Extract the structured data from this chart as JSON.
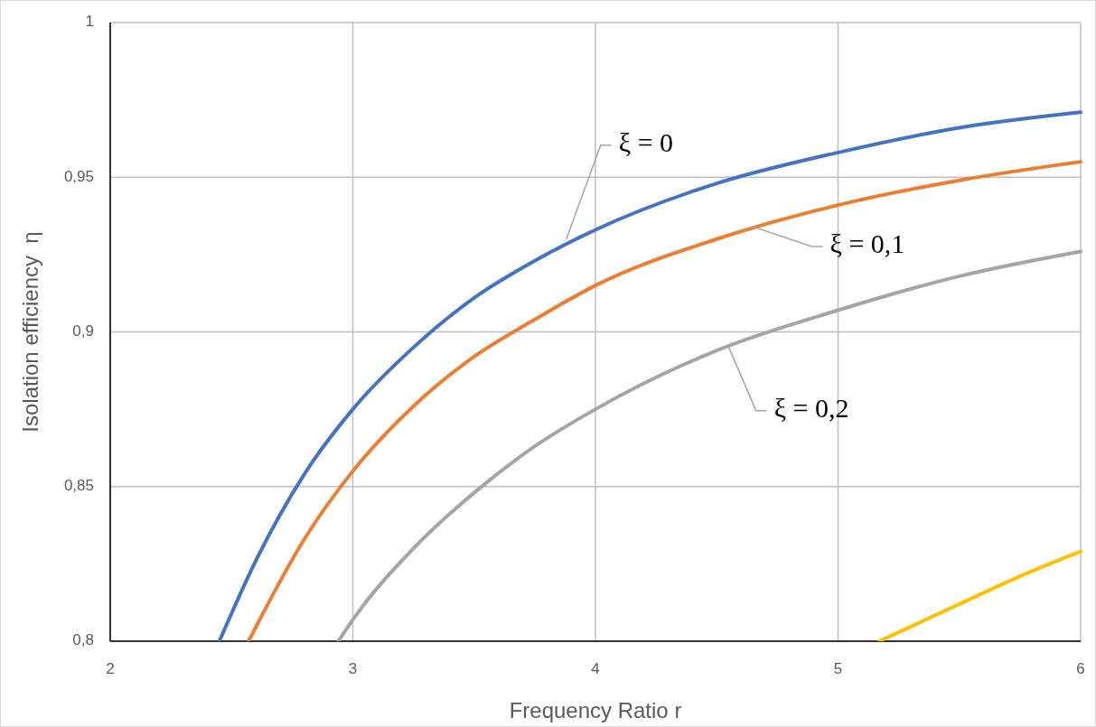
{
  "chart_data": {
    "type": "line",
    "xlabel": "Frequency Ratio r",
    "ylabel": "Isolation efficiency  η",
    "xlim": [
      2,
      6
    ],
    "ylim": [
      0.8,
      1
    ],
    "xticks": [
      2,
      3,
      4,
      5,
      6
    ],
    "yticks": [
      {
        "value": 0.8,
        "label": "0,8"
      },
      {
        "value": 0.85,
        "label": "0,85"
      },
      {
        "value": 0.9,
        "label": "0,9"
      },
      {
        "value": 0.95,
        "label": "0,95"
      },
      1
    ],
    "grid": true,
    "marker": "none",
    "line_style": "solid",
    "series": [
      {
        "color": "#4472c4",
        "x": [
          2.45,
          2.6,
          2.8,
          3,
          3.25,
          3.5,
          3.75,
          4,
          4.5,
          5,
          5.5,
          6
        ],
        "values": [
          0.8,
          0.826,
          0.854,
          0.875,
          0.895,
          0.911,
          0.923,
          0.933,
          0.948,
          0.958,
          0.966,
          0.971
        ]
      },
      {
        "color": "#ed7d31",
        "x": [
          2.57,
          2.8,
          3,
          3.25,
          3.5,
          3.75,
          4,
          4.5,
          5,
          5.5,
          6
        ],
        "values": [
          0.8,
          0.833,
          0.855,
          0.876,
          0.892,
          0.904,
          0.915,
          0.93,
          0.941,
          0.949,
          0.955
        ]
      },
      {
        "color": "#a5a5a5",
        "x": [
          2.94,
          3,
          3.25,
          3.5,
          3.75,
          4,
          4.5,
          5,
          5.5,
          6
        ],
        "values": [
          0.8,
          0.807,
          0.83,
          0.848,
          0.863,
          0.875,
          0.894,
          0.907,
          0.918,
          0.926
        ]
      },
      {
        "color": "#ffc000",
        "x": [
          5.17,
          5.5,
          5.75,
          6
        ],
        "values": [
          0.8,
          0.812,
          0.821,
          0.829
        ]
      }
    ],
    "annotations": [
      {
        "text": "ξ = 0",
        "x": 3.88,
        "y": 0.93
      },
      {
        "text": "ξ = 0,1",
        "x": 4.65,
        "y": 0.934
      },
      {
        "text": "ξ = 0,2",
        "x": 4.55,
        "y": 0.895
      }
    ]
  }
}
